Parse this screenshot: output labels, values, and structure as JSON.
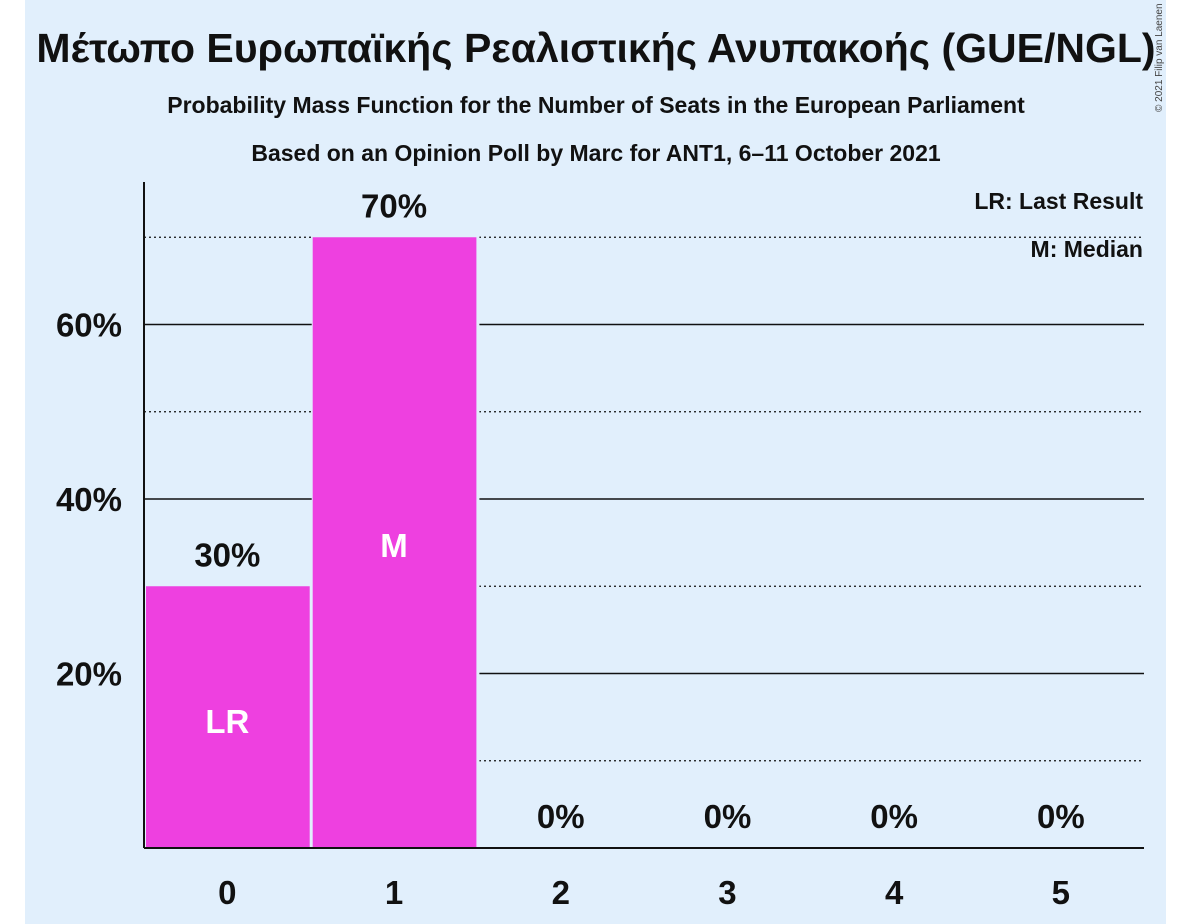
{
  "chart_data": {
    "type": "bar",
    "title": "Μέτωπο Ευρωπαϊκής Ρεαλιστικής Ανυπακοής (GUE/NGL)",
    "subtitle": "Probability Mass Function for the Number of Seats in the European Parliament",
    "subtitle2": "Based on an Opinion Poll by Marc for ANT1, 6–11 October 2021",
    "copyright": "© 2021 Filip van Laenen",
    "categories": [
      "0",
      "1",
      "2",
      "3",
      "4",
      "5"
    ],
    "values": [
      30,
      70,
      0,
      0,
      0,
      0
    ],
    "value_labels": [
      "30%",
      "70%",
      "0%",
      "0%",
      "0%",
      "0%"
    ],
    "bar_markers": [
      "LR",
      "M",
      "",
      "",
      "",
      ""
    ],
    "ylim": [
      0,
      76
    ],
    "yticks": [
      20,
      40,
      60
    ],
    "ytick_labels": [
      "20%",
      "40%",
      "60%"
    ],
    "minor_gridlines": [
      10,
      30,
      50,
      70
    ],
    "legend": [
      "LR: Last Result",
      "M: Median"
    ],
    "legend_position": "top-right",
    "bar_color": "#ee40e0",
    "background_color": "#e1effc"
  }
}
